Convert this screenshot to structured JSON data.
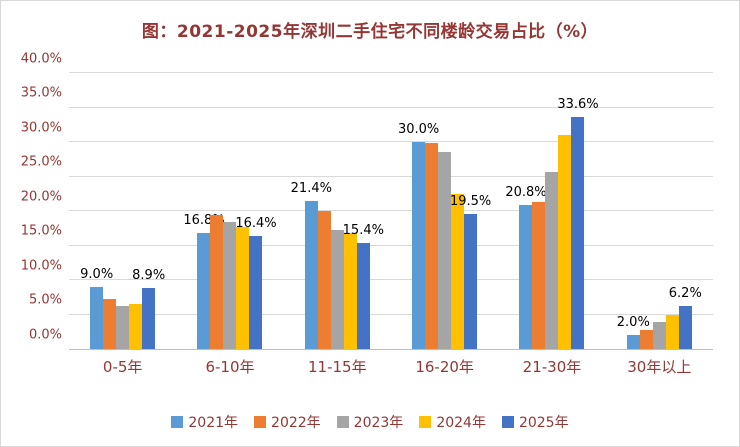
{
  "accent_text_color": "#943634",
  "chart_data": {
    "type": "bar",
    "title": "图：2021-2025年深圳二手住宅不同楼龄交易占比（%）",
    "categories": [
      "0-5年",
      "6-10年",
      "11-15年",
      "16-20年",
      "21-30年",
      "30年以上"
    ],
    "series": [
      {
        "name": "2021年",
        "color": "#5B9BD5",
        "values": [
          9.0,
          16.8,
          21.4,
          30.0,
          20.8,
          2.0
        ]
      },
      {
        "name": "2022年",
        "color": "#ED7D31",
        "values": [
          7.3,
          19.4,
          20.0,
          29.9,
          21.3,
          2.8
        ]
      },
      {
        "name": "2023年",
        "color": "#A5A5A5",
        "values": [
          6.3,
          18.4,
          17.2,
          28.6,
          25.6,
          3.9
        ]
      },
      {
        "name": "2024年",
        "color": "#FFC000",
        "values": [
          6.5,
          17.7,
          16.8,
          22.5,
          31.0,
          5.0
        ]
      },
      {
        "name": "2025年",
        "color": "#4472C4",
        "values": [
          8.9,
          16.4,
          15.4,
          19.5,
          33.6,
          6.2
        ]
      }
    ],
    "show_labels_for": [
      "2021年",
      "2025年"
    ],
    "label_format": "{value}%",
    "ylim": [
      0,
      40
    ],
    "ytick_step": 5,
    "ytick_format": "{value}%",
    "grid": "horizontal",
    "legend_position": "bottom"
  }
}
